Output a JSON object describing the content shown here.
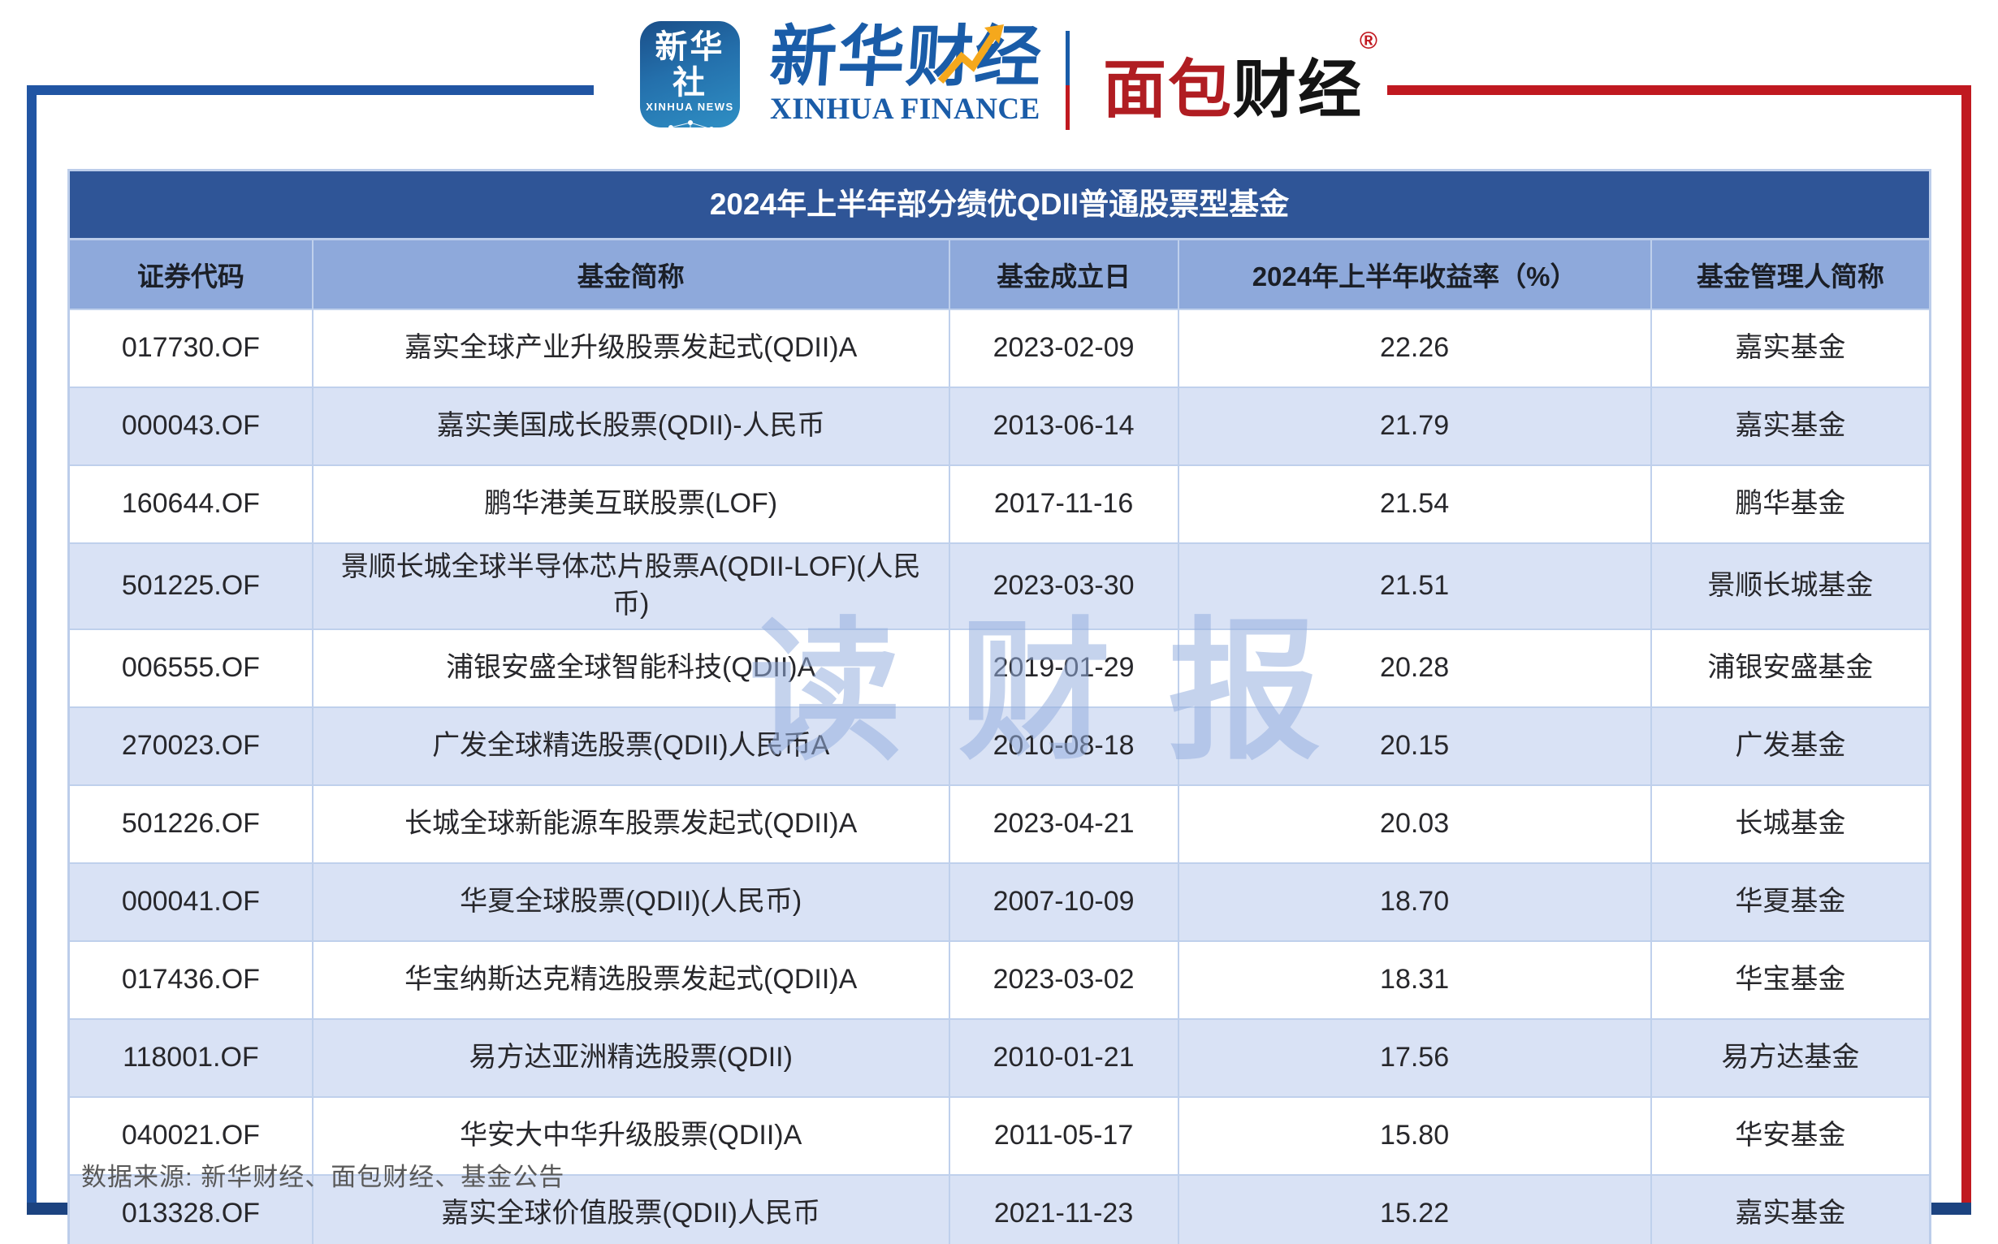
{
  "header": {
    "xinhua_news_icon": {
      "line1": "新华社",
      "line2": "XINHUA NEWS"
    },
    "xinhua_finance": {
      "cn": "新华财经",
      "en": "XINHUA FINANCE"
    },
    "bread_finance": {
      "cn_red": "面包",
      "cn_black": "财经",
      "reg_mark": "®"
    }
  },
  "table": {
    "title": "2024年上半年部分绩优QDII普通股票型基金",
    "columns": [
      "证券代码",
      "基金简称",
      "基金成立日",
      "2024年上半年收益率（%）",
      "基金管理人简称"
    ],
    "rows": [
      [
        "017730.OF",
        "嘉实全球产业升级股票发起式(QDII)A",
        "2023-02-09",
        "22.26",
        "嘉实基金"
      ],
      [
        "000043.OF",
        "嘉实美国成长股票(QDII)-人民币",
        "2013-06-14",
        "21.79",
        "嘉实基金"
      ],
      [
        "160644.OF",
        "鹏华港美互联股票(LOF)",
        "2017-11-16",
        "21.54",
        "鹏华基金"
      ],
      [
        "501225.OF",
        "景顺长城全球半导体芯片股票A(QDII-LOF)(人民币)",
        "2023-03-30",
        "21.51",
        "景顺长城基金"
      ],
      [
        "006555.OF",
        "浦银安盛全球智能科技(QDII)A",
        "2019-01-29",
        "20.28",
        "浦银安盛基金"
      ],
      [
        "270023.OF",
        "广发全球精选股票(QDII)人民币A",
        "2010-08-18",
        "20.15",
        "广发基金"
      ],
      [
        "501226.OF",
        "长城全球新能源车股票发起式(QDII)A",
        "2023-04-21",
        "20.03",
        "长城基金"
      ],
      [
        "000041.OF",
        "华夏全球股票(QDII)(人民币)",
        "2007-10-09",
        "18.70",
        "华夏基金"
      ],
      [
        "017436.OF",
        "华宝纳斯达克精选股票发起式(QDII)A",
        "2023-03-02",
        "18.31",
        "华宝基金"
      ],
      [
        "118001.OF",
        "易方达亚洲精选股票(QDII)",
        "2010-01-21",
        "17.56",
        "易方达基金"
      ],
      [
        "040021.OF",
        "华安大中华升级股票(QDII)A",
        "2011-05-17",
        "15.80",
        "华安基金"
      ],
      [
        "013328.OF",
        "嘉实全球价值股票(QDII)人民币",
        "2021-11-23",
        "15.22",
        "嘉实基金"
      ]
    ]
  },
  "chart_data": {
    "type": "table",
    "title": "2024年上半年部分绩优QDII普通股票型基金",
    "columns": [
      "证券代码",
      "基金简称",
      "基金成立日",
      "2024年上半年收益率（%）",
      "基金管理人简称"
    ],
    "rows": [
      {
        "code": "017730.OF",
        "fund": "嘉实全球产业升级股票发起式(QDII)A",
        "inception": "2023-02-09",
        "return_pct": 22.26,
        "manager": "嘉实基金"
      },
      {
        "code": "000043.OF",
        "fund": "嘉实美国成长股票(QDII)-人民币",
        "inception": "2013-06-14",
        "return_pct": 21.79,
        "manager": "嘉实基金"
      },
      {
        "code": "160644.OF",
        "fund": "鹏华港美互联股票(LOF)",
        "inception": "2017-11-16",
        "return_pct": 21.54,
        "manager": "鹏华基金"
      },
      {
        "code": "501225.OF",
        "fund": "景顺长城全球半导体芯片股票A(QDII-LOF)(人民币)",
        "inception": "2023-03-30",
        "return_pct": 21.51,
        "manager": "景顺长城基金"
      },
      {
        "code": "006555.OF",
        "fund": "浦银安盛全球智能科技(QDII)A",
        "inception": "2019-01-29",
        "return_pct": 20.28,
        "manager": "浦银安盛基金"
      },
      {
        "code": "270023.OF",
        "fund": "广发全球精选股票(QDII)人民币A",
        "inception": "2010-08-18",
        "return_pct": 20.15,
        "manager": "广发基金"
      },
      {
        "code": "501226.OF",
        "fund": "长城全球新能源车股票发起式(QDII)A",
        "inception": "2023-04-21",
        "return_pct": 20.03,
        "manager": "长城基金"
      },
      {
        "code": "000041.OF",
        "fund": "华夏全球股票(QDII)(人民币)",
        "inception": "2007-10-09",
        "return_pct": 18.7,
        "manager": "华夏基金"
      },
      {
        "code": "017436.OF",
        "fund": "华宝纳斯达克精选股票发起式(QDII)A",
        "inception": "2023-03-02",
        "return_pct": 18.31,
        "manager": "华宝基金"
      },
      {
        "code": "118001.OF",
        "fund": "易方达亚洲精选股票(QDII)",
        "inception": "2010-01-21",
        "return_pct": 17.56,
        "manager": "易方达基金"
      },
      {
        "code": "040021.OF",
        "fund": "华安大中华升级股票(QDII)A",
        "inception": "2011-05-17",
        "return_pct": 15.8,
        "manager": "华安基金"
      },
      {
        "code": "013328.OF",
        "fund": "嘉实全球价值股票(QDII)人民币",
        "inception": "2021-11-23",
        "return_pct": 15.22,
        "manager": "嘉实基金"
      }
    ]
  },
  "watermark": "读财报",
  "footer": {
    "source": "数据来源: 新华财经、面包财经、基金公告"
  },
  "colors": {
    "title_bar": "#2F5597",
    "header_row": "#8EA9DB",
    "even_row": "#D9E2F5",
    "frame_blue": "#2155A3",
    "frame_red": "#C01920",
    "bottom_bar": "#1C4380",
    "logo_blue": "#1A5CA8",
    "bread_red": "#B01D22",
    "arrow_yellow": "#F5A81C"
  }
}
